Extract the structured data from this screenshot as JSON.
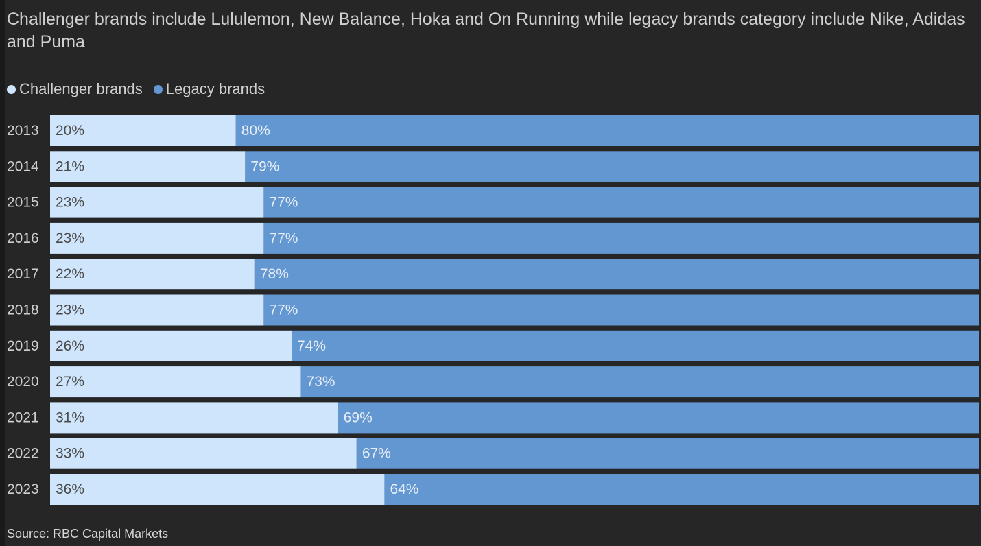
{
  "subtitle": "Challenger brands include Lululemon, New Balance, Hoka and On Running while legacy brands category include Nike, Adidas and Puma",
  "source": "Source: RBC Capital Markets",
  "colors": {
    "background": "#262626",
    "challenger": "#cfe5fc",
    "legacy": "#6397d1",
    "text": "#cfcfcf",
    "label_on_light": "#4a4a4a",
    "label_on_dark": "#e8eef7"
  },
  "chart_data": {
    "type": "bar",
    "orientation": "horizontal",
    "stacked": true,
    "legend_position": "top-left",
    "unit": "%",
    "xlim": [
      0,
      100
    ],
    "grid": false,
    "categories": [
      "2013",
      "2014",
      "2015",
      "2016",
      "2017",
      "2018",
      "2019",
      "2020",
      "2021",
      "2022",
      "2023"
    ],
    "series": [
      {
        "name": "Challenger brands",
        "color": "#cfe5fc",
        "values": [
          20,
          21,
          23,
          23,
          22,
          23,
          26,
          27,
          31,
          33,
          36
        ],
        "labels": [
          "20%",
          "21%",
          "23%",
          "23%",
          "22%",
          "23%",
          "26%",
          "27%",
          "31%",
          "33%",
          "36%"
        ]
      },
      {
        "name": "Legacy brands",
        "color": "#6397d1",
        "values": [
          80,
          79,
          77,
          77,
          78,
          77,
          74,
          73,
          69,
          67,
          64
        ],
        "labels": [
          "80%",
          "79%",
          "77%",
          "77%",
          "78%",
          "77%",
          "74%",
          "73%",
          "69%",
          "67%",
          "64%"
        ]
      }
    ]
  }
}
